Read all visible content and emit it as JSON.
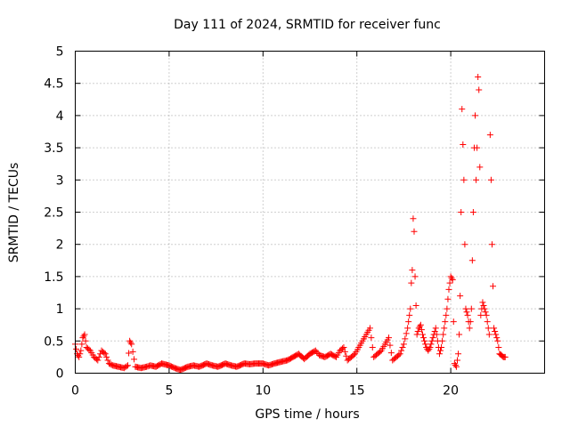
{
  "chart_data": {
    "type": "scatter",
    "title": "Day 111 of 2024, SRMTID for receiver func",
    "xlabel": "GPS time / hours",
    "ylabel": "SRMTID / TECUs",
    "xlim": [
      0,
      25
    ],
    "ylim": [
      0,
      5
    ],
    "xticks": [
      0,
      5,
      10,
      15,
      20
    ],
    "xtick_labels": [
      "0",
      "5",
      "10",
      "15",
      "20"
    ],
    "yticks": [
      0,
      0.5,
      1,
      1.5,
      2,
      2.5,
      3,
      3.5,
      4,
      4.5,
      5
    ],
    "ytick_labels": [
      "0",
      "0.5",
      "1",
      "1.5",
      "2",
      "2.5",
      "3",
      "3.5",
      "4",
      "4.5",
      "5"
    ],
    "grid": true,
    "marker": "+",
    "series": [
      {
        "name": "SRMTID",
        "color": "#ff0000",
        "x": [
          0.0,
          0.1,
          0.2,
          0.3,
          0.4,
          0.5,
          0.6,
          0.8,
          1.0,
          1.2,
          1.4,
          1.6,
          1.8,
          2.0,
          2.3,
          2.6,
          2.8,
          2.9,
          3.0,
          3.2,
          3.5,
          3.8,
          4.0,
          4.3,
          4.6,
          5.0,
          5.3,
          5.6,
          6.0,
          6.3,
          6.6,
          7.0,
          7.3,
          7.6,
          8.0,
          8.3,
          8.6,
          9.0,
          9.3,
          9.6,
          10.0,
          10.3,
          10.6,
          11.0,
          11.3,
          11.6,
          11.9,
          12.2,
          12.5,
          12.8,
          13.0,
          13.3,
          13.6,
          13.9,
          14.1,
          14.3,
          14.5,
          14.7,
          14.9,
          15.1,
          15.3,
          15.5,
          15.7,
          15.9,
          16.1,
          16.3,
          16.5,
          16.7,
          16.9,
          17.1,
          17.3,
          17.5,
          17.7,
          17.85,
          17.9,
          17.95,
          18.0,
          18.05,
          18.1,
          18.2,
          18.3,
          18.4,
          18.5,
          18.6,
          18.7,
          18.8,
          18.9,
          19.0,
          19.1,
          19.2,
          19.3,
          19.4,
          19.5,
          19.6,
          19.7,
          19.8,
          19.9,
          20.0,
          20.1,
          20.2,
          20.3,
          20.35,
          20.4,
          20.45,
          20.5,
          20.55,
          20.6,
          20.7,
          20.8,
          20.9,
          21.0,
          21.05,
          21.1,
          21.15,
          21.2,
          21.25,
          21.3,
          21.35,
          21.4,
          21.45,
          21.5,
          21.55,
          21.6,
          21.7,
          21.8,
          21.9,
          22.0,
          22.05,
          22.1,
          22.15,
          22.2,
          22.3,
          22.4,
          22.5,
          22.6,
          22.7,
          22.8,
          22.9
        ],
        "y": [
          0.45,
          0.3,
          0.25,
          0.35,
          0.55,
          0.6,
          0.4,
          0.35,
          0.25,
          0.2,
          0.35,
          0.3,
          0.15,
          0.12,
          0.1,
          0.08,
          0.12,
          0.5,
          0.45,
          0.1,
          0.08,
          0.1,
          0.12,
          0.1,
          0.15,
          0.12,
          0.08,
          0.05,
          0.1,
          0.12,
          0.1,
          0.15,
          0.12,
          0.1,
          0.15,
          0.12,
          0.1,
          0.15,
          0.14,
          0.15,
          0.15,
          0.12,
          0.15,
          0.18,
          0.2,
          0.25,
          0.3,
          0.22,
          0.3,
          0.35,
          0.28,
          0.25,
          0.3,
          0.25,
          0.35,
          0.4,
          0.2,
          0.25,
          0.3,
          0.4,
          0.5,
          0.6,
          0.7,
          0.25,
          0.3,
          0.35,
          0.45,
          0.55,
          0.2,
          0.25,
          0.3,
          0.45,
          0.7,
          1.0,
          1.4,
          1.6,
          2.4,
          2.2,
          1.5,
          0.6,
          0.7,
          0.75,
          0.6,
          0.5,
          0.4,
          0.35,
          0.4,
          0.5,
          0.6,
          0.7,
          0.5,
          0.3,
          0.4,
          0.6,
          0.8,
          1.0,
          1.3,
          1.5,
          1.45,
          0.15,
          0.1,
          0.2,
          0.3,
          0.6,
          1.2,
          2.5,
          4.1,
          3.0,
          1.0,
          0.9,
          0.7,
          0.8,
          1.0,
          1.75,
          2.5,
          3.5,
          4.0,
          3.0,
          3.5,
          4.6,
          4.4,
          3.2,
          0.9,
          1.1,
          1.0,
          0.9,
          0.7,
          0.6,
          3.7,
          3.0,
          2.0,
          0.7,
          0.6,
          0.5,
          0.3,
          0.28,
          0.25,
          0.25
        ]
      }
    ]
  }
}
